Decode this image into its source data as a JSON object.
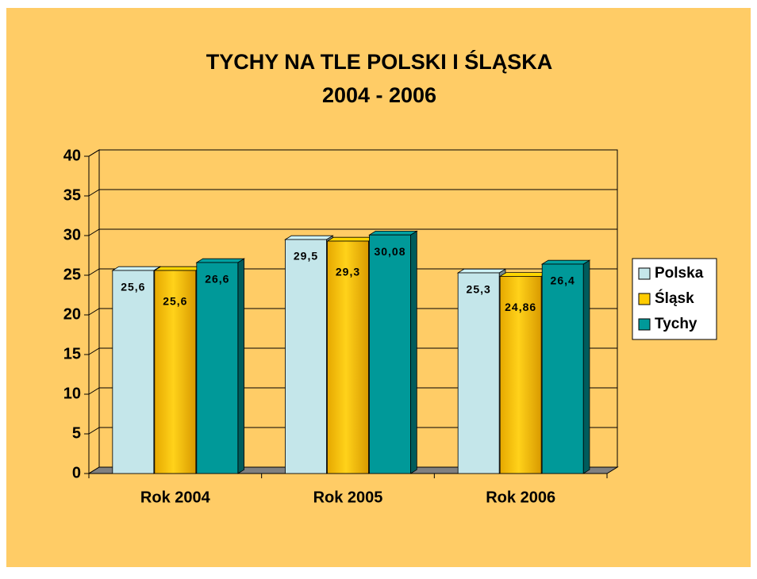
{
  "chart_data": {
    "type": "bar3d",
    "title": "TYCHY NA TLE POLSKI I ŚLĄSKA",
    "subtitle": "2004 - 2006",
    "categories": [
      "Rok 2004",
      "Rok 2005",
      "Rok 2006"
    ],
    "series": [
      {
        "name": "Polska",
        "color": "#c4e6ea",
        "values": [
          25.6,
          29.5,
          25.3
        ],
        "value_labels": [
          "25,6",
          "29,5",
          "25,3"
        ]
      },
      {
        "name": "Śląsk",
        "color": "#ffcc00",
        "values": [
          25.6,
          29.3,
          24.86
        ],
        "value_labels": [
          "25,6",
          "29,3",
          "24,86"
        ]
      },
      {
        "name": "Tychy",
        "color": "#009999",
        "values": [
          26.6,
          30.08,
          26.4
        ],
        "value_labels": [
          "26,6",
          "30,08",
          "26,4"
        ]
      }
    ],
    "ylim": [
      0,
      40
    ],
    "yticks": [
      0,
      5,
      10,
      15,
      20,
      25,
      30,
      35,
      40
    ],
    "grid": true,
    "legend": "right"
  }
}
